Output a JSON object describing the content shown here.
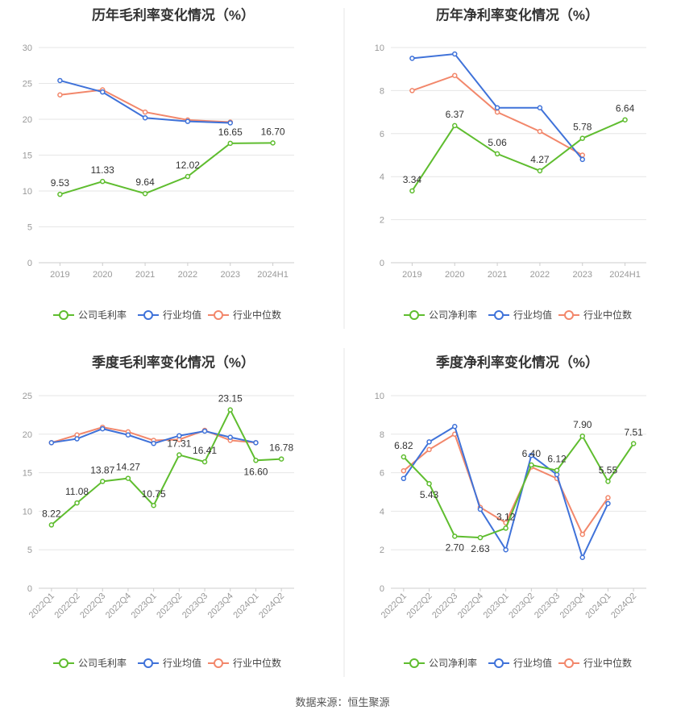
{
  "colors": {
    "company": "#5fbd2f",
    "industry_avg": "#3f72d9",
    "industry_median": "#f2876b",
    "grid": "#e6e6e6",
    "divider": "#e6e6e6"
  },
  "legend": {
    "gross_company": "公司毛利率",
    "net_company": "公司净利率",
    "industry_avg": "行业均值",
    "industry_median": "行业中位数"
  },
  "source_note": "数据来源：恒生聚源",
  "chart_data": [
    {
      "type": "line",
      "title": "历年毛利率变化情况（%）",
      "categories": [
        "2019",
        "2020",
        "2021",
        "2022",
        "2023",
        "2024H1"
      ],
      "yticks": [
        0,
        5,
        10,
        15,
        20,
        25,
        30
      ],
      "ylim": [
        0,
        30
      ],
      "series": [
        {
          "name": "公司毛利率",
          "values": [
            9.53,
            11.33,
            9.64,
            12.02,
            16.65,
            16.7
          ],
          "labels": [
            "9.53",
            "11.33",
            "9.64",
            "12.02",
            "16.65",
            "16.70"
          ]
        },
        {
          "name": "行业均值",
          "values": [
            25.4,
            23.8,
            20.2,
            19.7,
            19.5,
            null
          ]
        },
        {
          "name": "行业中位数",
          "values": [
            23.4,
            24.1,
            21.0,
            19.9,
            19.6,
            null
          ]
        }
      ]
    },
    {
      "type": "line",
      "title": "历年净利率变化情况（%）",
      "categories": [
        "2019",
        "2020",
        "2021",
        "2022",
        "2023",
        "2024H1"
      ],
      "yticks": [
        0,
        2,
        4,
        6,
        8,
        10
      ],
      "ylim": [
        0,
        10
      ],
      "series": [
        {
          "name": "公司净利率",
          "values": [
            3.34,
            6.37,
            5.06,
            4.27,
            5.78,
            6.64
          ],
          "labels": [
            "3.34",
            "6.37",
            "5.06",
            "4.27",
            "5.78",
            "6.64"
          ]
        },
        {
          "name": "行业均值",
          "values": [
            9.5,
            9.7,
            7.2,
            7.2,
            4.8,
            null
          ]
        },
        {
          "name": "行业中位数",
          "values": [
            8.0,
            8.7,
            7.0,
            6.1,
            5.0,
            null
          ]
        }
      ]
    },
    {
      "type": "line",
      "title": "季度毛利率变化情况（%）",
      "categories": [
        "2022Q1",
        "2022Q2",
        "2022Q3",
        "2022Q4",
        "2023Q1",
        "2023Q2",
        "2023Q3",
        "2023Q4",
        "2024Q1",
        "2024Q2"
      ],
      "yticks": [
        0,
        5,
        10,
        15,
        20,
        25
      ],
      "ylim": [
        0,
        25
      ],
      "series": [
        {
          "name": "公司毛利率",
          "values": [
            8.22,
            11.08,
            13.87,
            14.27,
            10.75,
            17.31,
            16.41,
            23.15,
            16.6,
            16.78
          ],
          "labels": [
            "8.22",
            "11.08",
            "13.87",
            "14.27",
            "10.75",
            "17.31",
            "16.41",
            "23.15",
            "16.60",
            "16.78"
          ]
        },
        {
          "name": "行业均值",
          "values": [
            18.9,
            19.4,
            20.7,
            19.9,
            18.8,
            19.8,
            20.4,
            19.6,
            18.9,
            null
          ]
        },
        {
          "name": "行业中位数",
          "values": [
            18.9,
            19.9,
            20.9,
            20.3,
            19.2,
            19.3,
            20.5,
            19.2,
            18.9,
            null
          ]
        }
      ]
    },
    {
      "type": "line",
      "title": "季度净利率变化情况（%）",
      "categories": [
        "2022Q1",
        "2022Q2",
        "2022Q3",
        "2022Q4",
        "2023Q1",
        "2023Q2",
        "2023Q3",
        "2023Q4",
        "2024Q1",
        "2024Q2"
      ],
      "yticks": [
        0,
        2,
        4,
        6,
        8,
        10
      ],
      "ylim": [
        0,
        10
      ],
      "series": [
        {
          "name": "公司净利率",
          "values": [
            6.82,
            5.43,
            2.7,
            2.63,
            3.12,
            6.4,
            6.12,
            7.9,
            5.55,
            7.51
          ],
          "labels": [
            "6.82",
            "5.43",
            "2.70",
            "2.63",
            "3.12",
            "6.40",
            "6.12",
            "7.90",
            "5.55",
            "7.51"
          ]
        },
        {
          "name": "行业均值",
          "values": [
            5.7,
            7.6,
            8.4,
            4.1,
            2.0,
            6.9,
            5.9,
            1.6,
            4.4,
            null
          ]
        },
        {
          "name": "行业中位数",
          "values": [
            6.1,
            7.2,
            8.0,
            4.2,
            3.4,
            6.3,
            5.7,
            2.8,
            4.7,
            null
          ]
        }
      ]
    }
  ]
}
